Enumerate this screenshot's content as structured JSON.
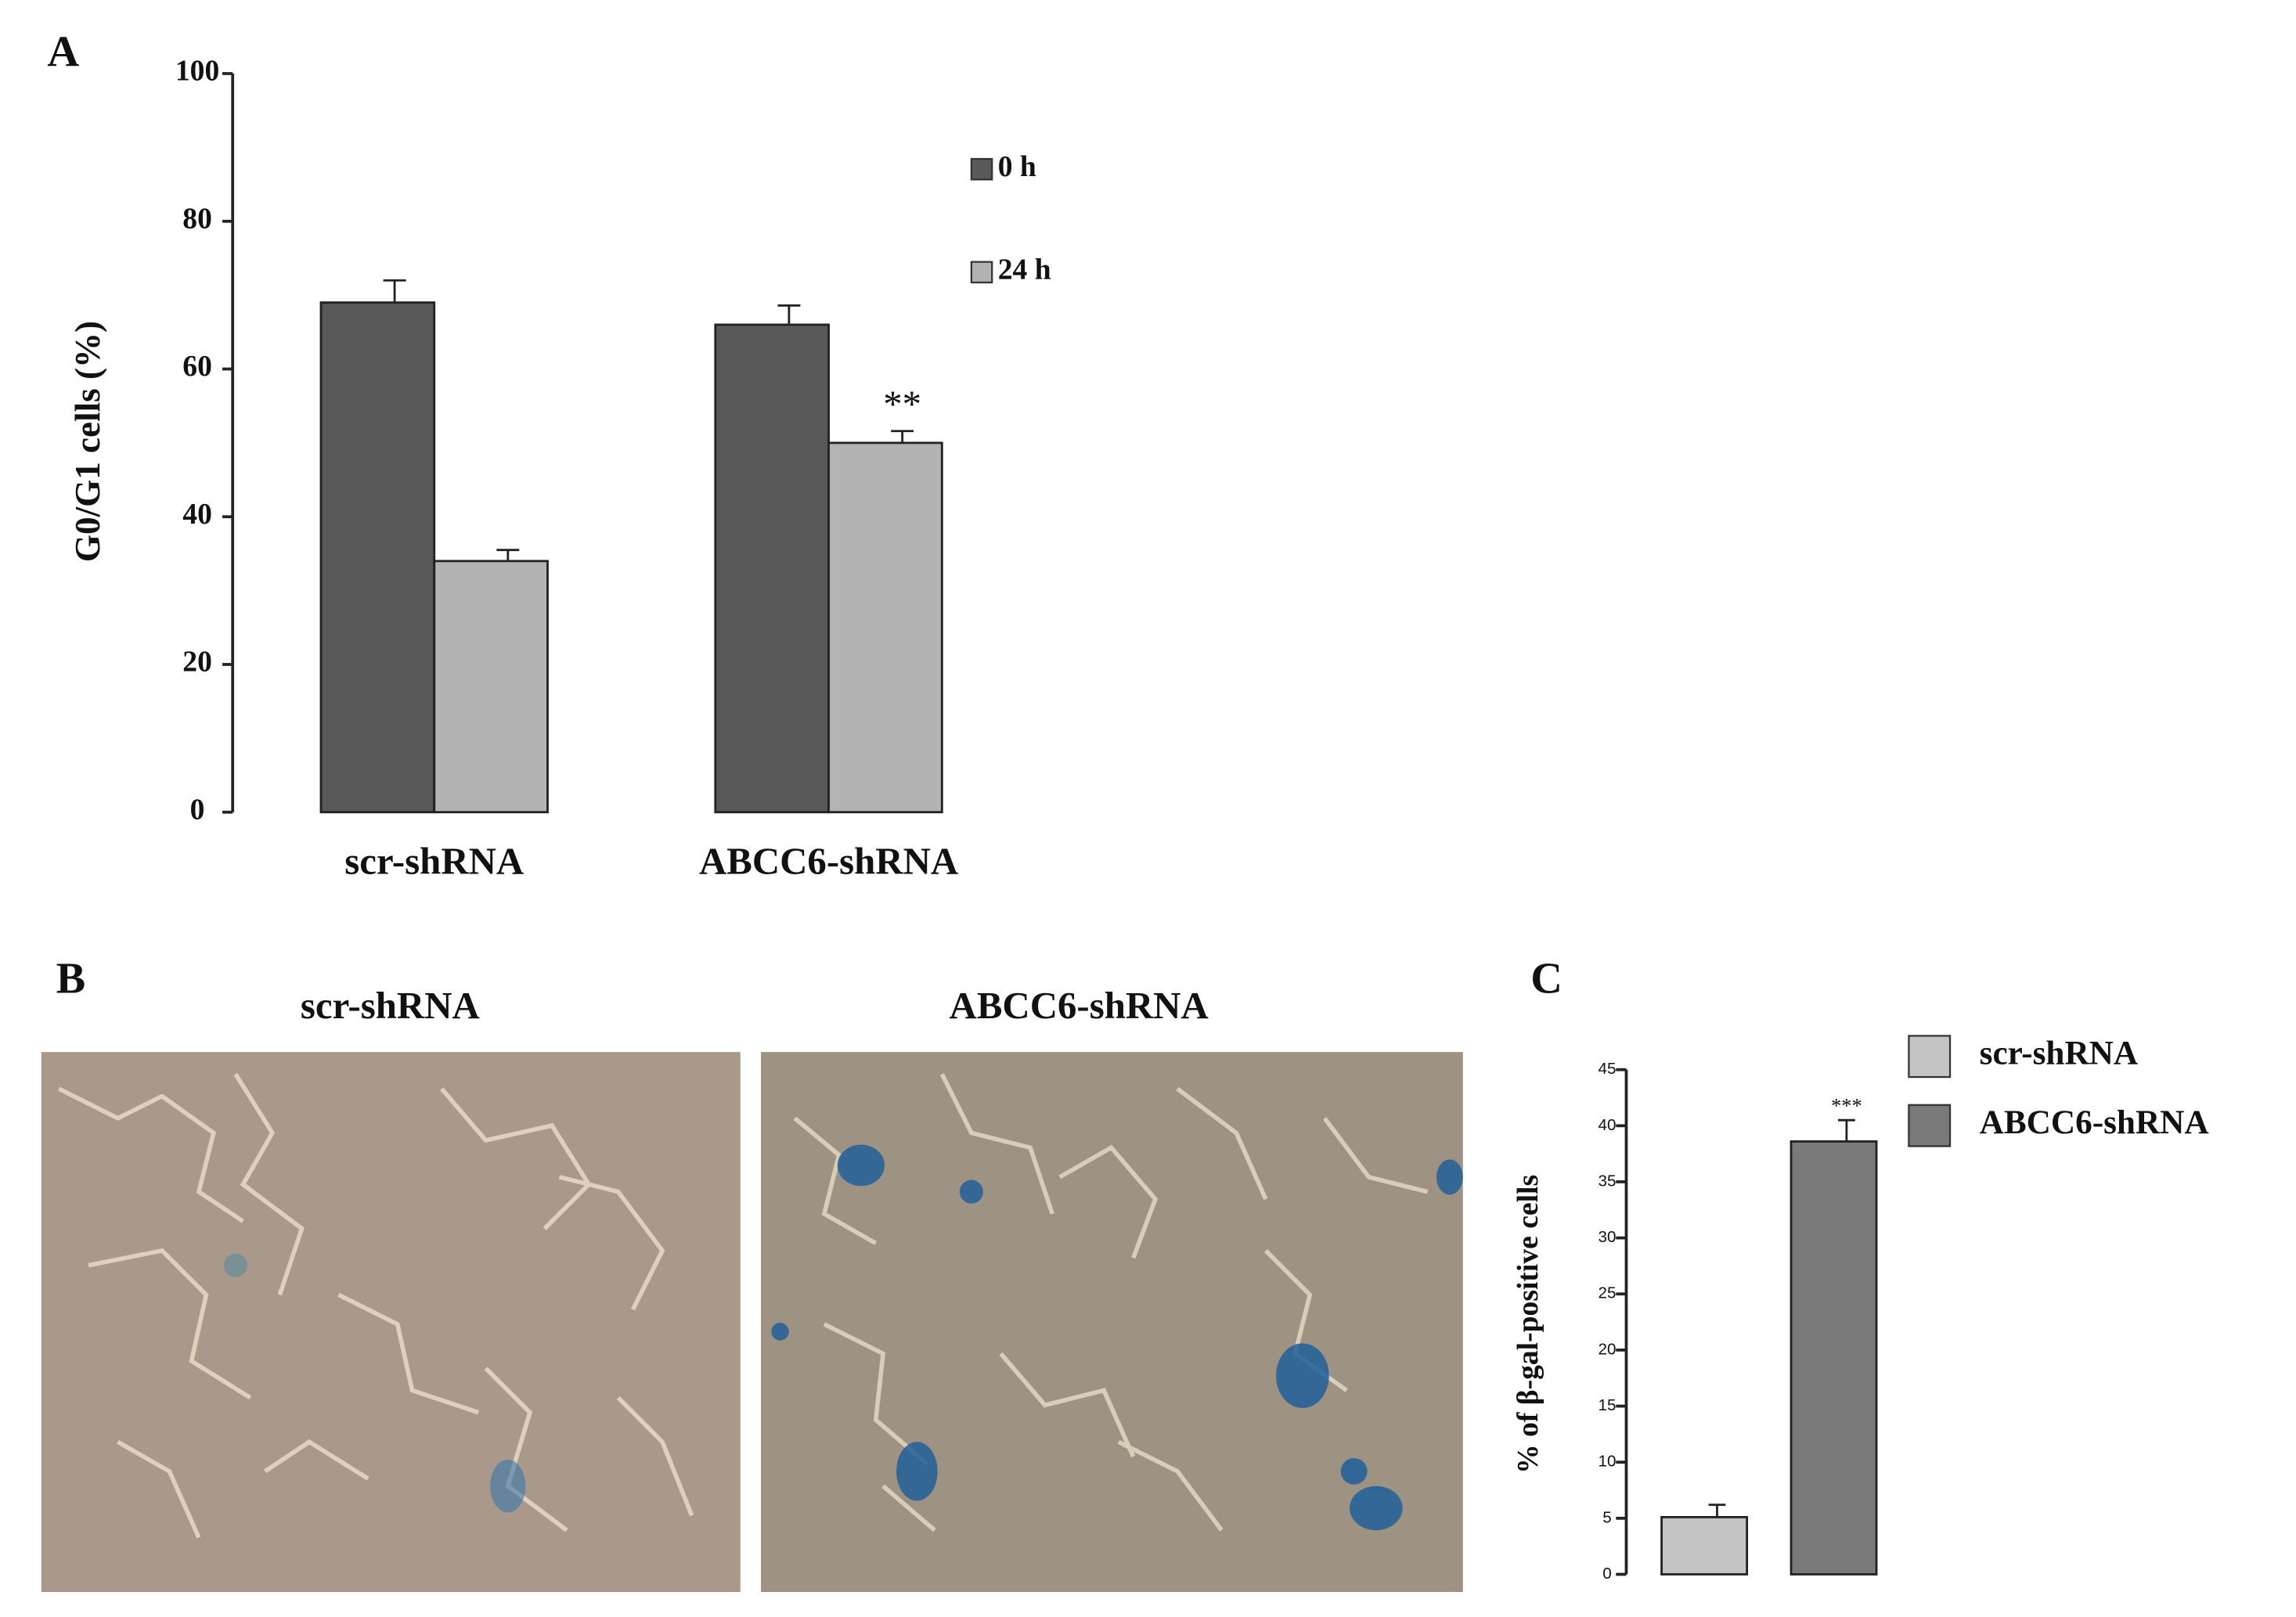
{
  "chart_data": [
    {
      "type": "bar",
      "label": "A",
      "ylabel": "G0/G1 cells (%)",
      "categories": [
        "scr-shRNA",
        "ABCC6-shRNA"
      ],
      "series": [
        {
          "name": "0 h",
          "color": "#595959",
          "values": [
            69,
            66
          ],
          "errors": [
            3,
            2.6
          ]
        },
        {
          "name": "24 h",
          "color": "#b3b3b3",
          "values": [
            34,
            50
          ],
          "errors": [
            1.5,
            1.6
          ],
          "annotations": [
            null,
            "**"
          ]
        }
      ],
      "ylim": [
        0,
        100
      ],
      "yticks": [
        0,
        20,
        40,
        60,
        80,
        100
      ]
    },
    {
      "type": "bar",
      "label": "C",
      "ylabel": "% of β-gal-positive cells",
      "series": [
        {
          "name": "scr-shRNA",
          "color": "#c4c4c4",
          "values": [
            5.1
          ],
          "errors": [
            1.1
          ]
        },
        {
          "name": "ABCC6-shRNA",
          "color": "#7a7a7a",
          "values": [
            38.6
          ],
          "errors": [
            1.9
          ],
          "annotations": [
            "***"
          ]
        }
      ],
      "ylim": [
        0,
        45
      ],
      "yticks": [
        0,
        5,
        10,
        15,
        20,
        25,
        30,
        35,
        40,
        45
      ]
    }
  ],
  "images": {
    "label": "B",
    "captions": [
      "scr-shRNA",
      "ABCC6-shRNA"
    ]
  }
}
